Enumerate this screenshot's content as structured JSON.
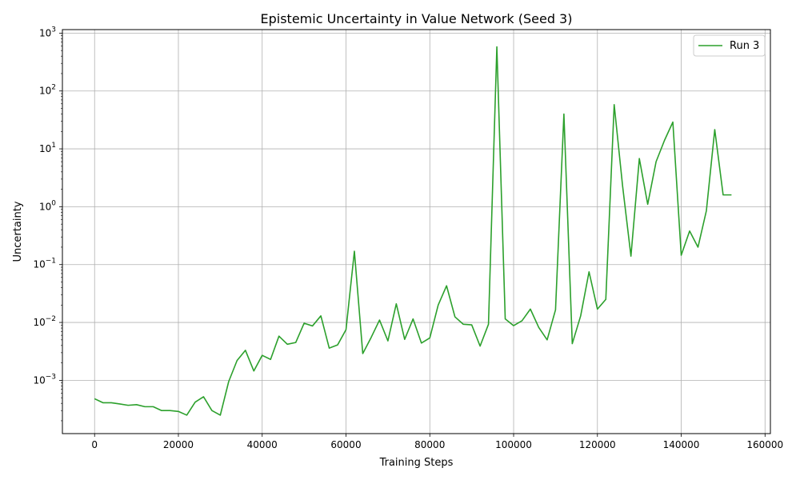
{
  "chart_data": {
    "type": "line",
    "title": "Epistemic Uncertainty in Value Network (Seed 3)",
    "xlabel": "Training Steps",
    "ylabel": "Uncertainty",
    "xlim": [
      -7680,
      161280
    ],
    "ylim": [
      0.00012,
      1150
    ],
    "yscale": "log",
    "grid": true,
    "legend": "top-right",
    "x_ticks": [
      0,
      20000,
      40000,
      60000,
      80000,
      100000,
      120000,
      140000,
      160000
    ],
    "x_tick_labels": [
      "0",
      "20000",
      "40000",
      "60000",
      "80000",
      "100000",
      "120000",
      "140000",
      "160000"
    ],
    "y_ticks": [
      0.001,
      0.01,
      0.1,
      1,
      10,
      100,
      1000
    ],
    "y_tick_labels": [
      {
        "base": "10",
        "exp": "−3"
      },
      {
        "base": "10",
        "exp": "−2"
      },
      {
        "base": "10",
        "exp": "−1"
      },
      {
        "base": "10",
        "exp": "0"
      },
      {
        "base": "10",
        "exp": "1"
      },
      {
        "base": "10",
        "exp": "2"
      },
      {
        "base": "10",
        "exp": "3"
      }
    ],
    "series": [
      {
        "name": "Run 3",
        "color": "#2ca02c",
        "x": [
          0,
          2000,
          4000,
          6000,
          8000,
          10000,
          12000,
          14000,
          16000,
          18000,
          20000,
          22000,
          24000,
          26000,
          28000,
          30000,
          32000,
          34000,
          36000,
          38000,
          40000,
          42000,
          44000,
          46000,
          48000,
          50000,
          52000,
          54000,
          56000,
          58000,
          60000,
          62000,
          64000,
          66000,
          68000,
          70000,
          72000,
          74000,
          76000,
          78000,
          80000,
          82000,
          84000,
          86000,
          88000,
          90000,
          92000,
          94000,
          96000,
          98000,
          100000,
          102000,
          104000,
          106000,
          108000,
          110000,
          112000,
          114000,
          116000,
          118000,
          120000,
          122000,
          124000,
          126000,
          128000,
          130000,
          132000,
          134000,
          136000,
          138000,
          140000,
          142000,
          144000,
          146000,
          148000,
          150000,
          152000
        ],
        "values": [
          0.00048,
          0.00041,
          0.00041,
          0.00039,
          0.00037,
          0.00038,
          0.00035,
          0.00035,
          0.0003,
          0.0003,
          0.00029,
          0.00025,
          0.00042,
          0.00052,
          0.0003,
          0.00025,
          0.00095,
          0.0022,
          0.0033,
          0.00145,
          0.0027,
          0.0023,
          0.0058,
          0.0042,
          0.0045,
          0.0097,
          0.0087,
          0.013,
          0.0036,
          0.0041,
          0.0075,
          0.17,
          0.0029,
          0.0055,
          0.011,
          0.0048,
          0.021,
          0.0051,
          0.0115,
          0.0044,
          0.0054,
          0.02,
          0.043,
          0.0125,
          0.0093,
          0.0091,
          0.0039,
          0.0093,
          580,
          0.0115,
          0.0088,
          0.0107,
          0.017,
          0.0082,
          0.005,
          0.0165,
          40,
          0.0043,
          0.013,
          0.075,
          0.017,
          0.025,
          58,
          2.3,
          0.14,
          6.8,
          1.1,
          6.0,
          14,
          29,
          0.145,
          0.38,
          0.2,
          0.85,
          21.5,
          1.6,
          1.6
        ]
      }
    ]
  }
}
